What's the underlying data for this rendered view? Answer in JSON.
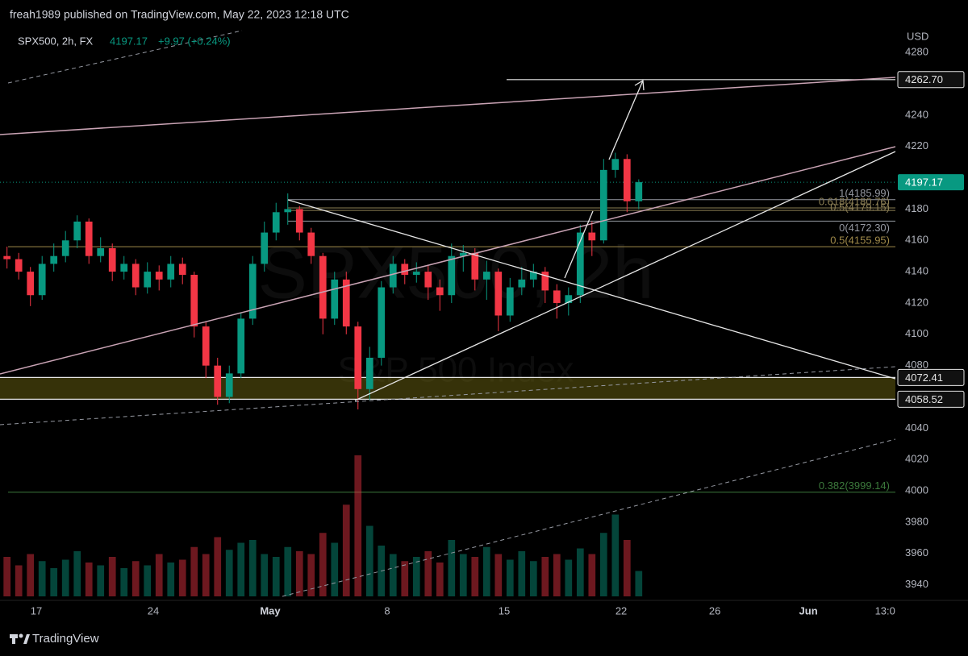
{
  "header": "freah1989 published on TradingView.com, May 22, 2023 12:18 UTC",
  "footer": "TradingView",
  "chart_data": {
    "type": "candlestick",
    "symbol": "SPX500, 2h, FX",
    "last": {
      "value": 4197.17,
      "label": "4197.17"
    },
    "change": "+9.97 (+0.24%)",
    "watermark": "SPX500, 2h",
    "watermark_subtitle": "S&P 500 Index",
    "currency": "USD",
    "up_color": "#089981",
    "down_color": "#f23645",
    "grid": false,
    "xlim": [
      -1.55,
      36.72
    ],
    "xticks": [
      {
        "value": 0,
        "label": "17"
      },
      {
        "value": 5,
        "label": "24"
      },
      {
        "value": 10,
        "label": "May"
      },
      {
        "value": 15,
        "label": "8"
      },
      {
        "value": 20,
        "label": "15"
      },
      {
        "value": 25,
        "label": "22"
      },
      {
        "value": 29,
        "label": "26"
      },
      {
        "value": 33,
        "label": "Jun"
      },
      {
        "value": 36.28,
        "label": "13:0"
      }
    ],
    "ylim": [
      3930,
      4294
    ],
    "yticks": [
      3940,
      3960,
      3980,
      4000,
      4020,
      4040,
      4080,
      4100,
      4120,
      4140,
      4160,
      4180,
      4220,
      4240,
      4280
    ],
    "x": [
      -1.25,
      -0.75,
      -0.25,
      0.25,
      0.75,
      1.25,
      1.75,
      2.25,
      2.75,
      3.25,
      3.75,
      4.25,
      4.75,
      5.25,
      5.75,
      6.25,
      6.75,
      7.25,
      7.75,
      8.25,
      8.75,
      9.25,
      9.75,
      10.25,
      10.75,
      11.25,
      11.75,
      12.25,
      12.75,
      13.25,
      13.75,
      14.25,
      14.75,
      15.25,
      15.75,
      16.25,
      16.75,
      17.25,
      17.75,
      18.25,
      18.75,
      19.25,
      19.75,
      20.25,
      20.75,
      21.25,
      21.75,
      22.25,
      22.75,
      23.25,
      23.75,
      24.25,
      24.75,
      25.25,
      25.75
    ],
    "open": [
      4150,
      4148,
      4140,
      4125,
      4145,
      4150,
      4160,
      4172,
      4150,
      4155,
      4140,
      4145,
      4130,
      4140,
      4135,
      4145,
      4138,
      4105,
      4080,
      4060,
      4075,
      4110,
      4145,
      4165,
      4178,
      4180,
      4165,
      4150,
      4110,
      4135,
      4105,
      4065,
      4085,
      4130,
      4145,
      4138,
      4140,
      4130,
      4125,
      4150,
      4152,
      4135,
      4140,
      4112,
      4130,
      4135,
      4140,
      4128,
      4120,
      4125,
      4165,
      4160,
      4205,
      4212,
      4185
    ],
    "high": [
      4156,
      4152,
      4143,
      4150,
      4158,
      4166,
      4176,
      4174,
      4162,
      4158,
      4150,
      4148,
      4146,
      4144,
      4150,
      4149,
      4140,
      4108,
      4085,
      4080,
      4114,
      4150,
      4172,
      4184,
      4190,
      4182,
      4168,
      4152,
      4140,
      4140,
      4108,
      4092,
      4134,
      4150,
      4148,
      4146,
      4144,
      4135,
      4158,
      4157,
      4155,
      4147,
      4142,
      4136,
      4143,
      4145,
      4143,
      4132,
      4130,
      4170,
      4172,
      4212,
      4216,
      4215,
      4199
    ],
    "low": [
      4142,
      4135,
      4118,
      4122,
      4140,
      4146,
      4155,
      4145,
      4146,
      4134,
      4135,
      4125,
      4126,
      4128,
      4130,
      4132,
      4098,
      4072,
      4055,
      4056,
      4072,
      4106,
      4140,
      4160,
      4170,
      4160,
      4145,
      4100,
      4106,
      4100,
      4052,
      4058,
      4080,
      4126,
      4132,
      4133,
      4122,
      4115,
      4120,
      4140,
      4128,
      4122,
      4102,
      4108,
      4125,
      4130,
      4120,
      4110,
      4112,
      4120,
      4150,
      4158,
      4200,
      4178,
      4180
    ],
    "close": [
      4148,
      4140,
      4125,
      4145,
      4150,
      4160,
      4172,
      4150,
      4155,
      4140,
      4145,
      4130,
      4140,
      4135,
      4145,
      4138,
      4105,
      4080,
      4060,
      4075,
      4110,
      4145,
      4165,
      4178,
      4180,
      4165,
      4150,
      4110,
      4135,
      4105,
      4065,
      4085,
      4130,
      4145,
      4138,
      4140,
      4130,
      4125,
      4150,
      4152,
      4135,
      4140,
      4112,
      4130,
      4135,
      4140,
      4128,
      4120,
      4125,
      4165,
      4160,
      4205,
      4212,
      4185,
      4197.17
    ],
    "volume": [
      28,
      22,
      30,
      25,
      20,
      26,
      32,
      24,
      22,
      28,
      20,
      25,
      22,
      30,
      24,
      26,
      35,
      30,
      42,
      33,
      38,
      40,
      30,
      28,
      35,
      32,
      30,
      45,
      38,
      65,
      100,
      50,
      36,
      30,
      25,
      28,
      32,
      24,
      40,
      30,
      28,
      35,
      30,
      26,
      32,
      25,
      28,
      30,
      26,
      34,
      30,
      45,
      58,
      40,
      18
    ],
    "levels": [
      {
        "value": 4262.7,
        "label": "4262.70"
      },
      {
        "value": 4072.41,
        "label": "4072.41"
      },
      {
        "value": 4058.52,
        "label": "4058.52"
      }
    ],
    "fib_levels": [
      {
        "value": 4185.99,
        "label": "1(4185.99)",
        "color": "#9598a1"
      },
      {
        "value": 4180.76,
        "label": "0.618(4180.76)",
        "color": "#8c7f55"
      },
      {
        "value": 4179.15,
        "label": "0.5(4179.15)",
        "color": "#8c7f55"
      },
      {
        "value": 4172.3,
        "label": "0(4172.30)",
        "color": "#9598a1"
      },
      {
        "value": 4155.95,
        "label": "0.5(4155.95)",
        "color": "#a08a4a"
      },
      {
        "value": 3999.14,
        "label": "0.382(3999.14)",
        "color": "#3c7a3c"
      }
    ]
  }
}
